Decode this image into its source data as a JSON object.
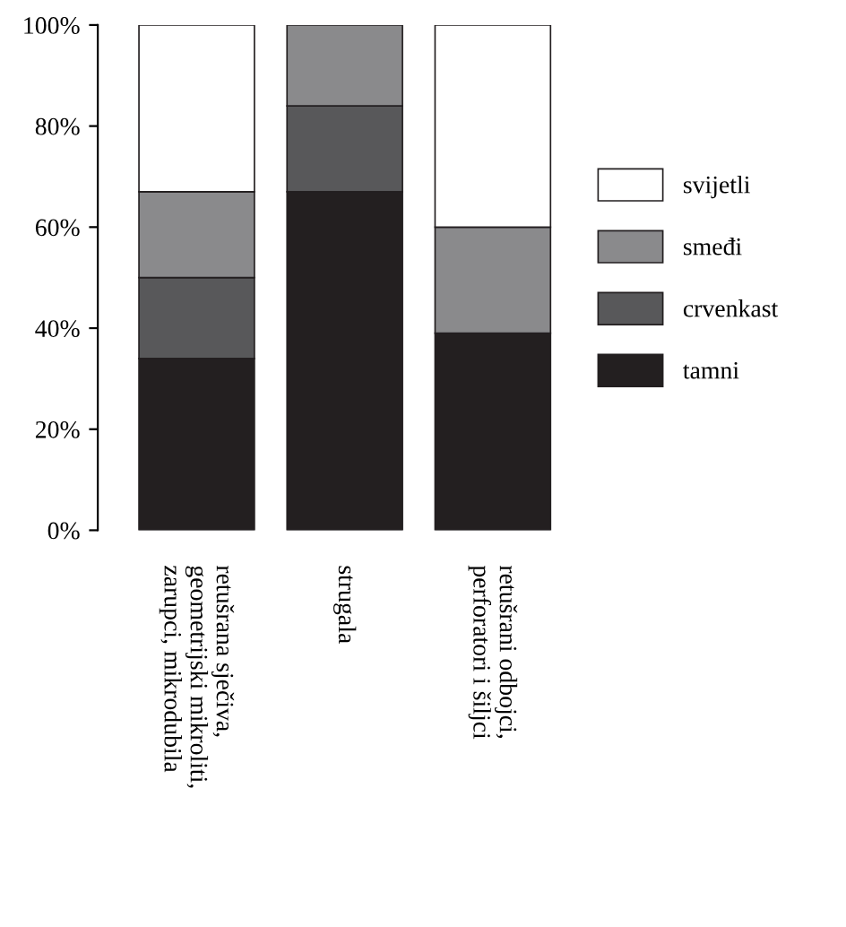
{
  "chart_data": {
    "type": "bar",
    "stacked": true,
    "categories": [
      "retušrana sječiva,\ngeometrijski mikroliti,\nzarupci, mikrodubila",
      "strugala",
      "retušrani odbojci,\nperforatori i šiljci"
    ],
    "series": [
      {
        "name": "tamni",
        "color": "#231f20",
        "values": [
          34,
          67,
          39
        ]
      },
      {
        "name": "crvenkast",
        "color": "#58585a",
        "values": [
          16,
          17,
          0
        ]
      },
      {
        "name": "smeđi",
        "color": "#8a8a8c",
        "values": [
          17,
          16,
          21
        ]
      },
      {
        "name": "svijetli",
        "color": "#ffffff",
        "values": [
          33,
          0,
          40
        ]
      }
    ],
    "ylim": [
      0,
      100
    ],
    "yticks": [
      {
        "value": 0,
        "label": "0%"
      },
      {
        "value": 20,
        "label": "20%"
      },
      {
        "value": 40,
        "label": "40%"
      },
      {
        "value": 60,
        "label": "60%"
      },
      {
        "value": 80,
        "label": "80%"
      },
      {
        "value": 100,
        "label": "100%"
      }
    ],
    "legend": "right",
    "grid": false
  }
}
